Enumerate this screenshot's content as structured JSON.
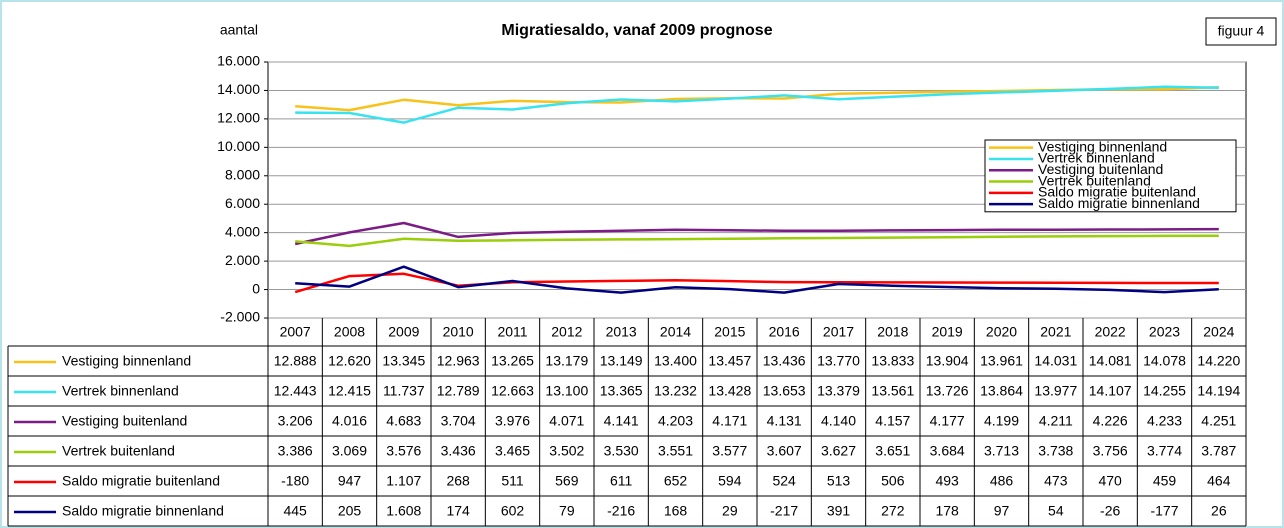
{
  "chart_data": {
    "type": "line",
    "title": "Migratiesaldo, vanaf 2009 prognose",
    "y_label": "aantal",
    "annotation": "figuur 4",
    "categories": [
      "2007",
      "2008",
      "2009",
      "2010",
      "2011",
      "2012",
      "2013",
      "2014",
      "2015",
      "2016",
      "2017",
      "2018",
      "2019",
      "2020",
      "2021",
      "2022",
      "2023",
      "2024"
    ],
    "ylim": [
      -2000,
      16000
    ],
    "yticks": [
      {
        "value": -2000,
        "label": "-2.000"
      },
      0,
      {
        "value": 2000,
        "label": "2.000"
      },
      {
        "value": 4000,
        "label": "4.000"
      },
      {
        "value": 6000,
        "label": "6.000"
      },
      {
        "value": 8000,
        "label": "8.000"
      },
      {
        "value": 10000,
        "label": "10.000"
      },
      {
        "value": 12000,
        "label": "12.000"
      },
      {
        "value": 14000,
        "label": "14.000"
      },
      {
        "value": 16000,
        "label": "16.000"
      }
    ],
    "grid": true,
    "legend": "upper right",
    "data_table": true,
    "series": [
      {
        "name": "Vestiging binnenland",
        "color": "#f7c21a",
        "values": [
          12888,
          12620,
          13345,
          12963,
          13265,
          13179,
          13149,
          13400,
          13457,
          13436,
          13770,
          13833,
          13904,
          13961,
          14031,
          14081,
          14078,
          14220
        ],
        "value_labels": [
          "12.888",
          "12.620",
          "13.345",
          "12.963",
          "13.265",
          "13.179",
          "13.149",
          "13.400",
          "13.457",
          "13.436",
          "13.770",
          "13.833",
          "13.904",
          "13.961",
          "14.031",
          "14.081",
          "14.078",
          "14.220"
        ]
      },
      {
        "name": "Vertrek binnenland",
        "color": "#38e3ef",
        "values": [
          12443,
          12415,
          11737,
          12789,
          12663,
          13100,
          13365,
          13232,
          13428,
          13653,
          13379,
          13561,
          13726,
          13864,
          13977,
          14107,
          14255,
          14194
        ],
        "value_labels": [
          "12.443",
          "12.415",
          "11.737",
          "12.789",
          "12.663",
          "13.100",
          "13.365",
          "13.232",
          "13.428",
          "13.653",
          "13.379",
          "13.561",
          "13.726",
          "13.864",
          "13.977",
          "14.107",
          "14.255",
          "14.194"
        ]
      },
      {
        "name": "Vestiging buitenland",
        "color": "#7b1c86",
        "values": [
          3206,
          4016,
          4683,
          3704,
          3976,
          4071,
          4141,
          4203,
          4171,
          4131,
          4140,
          4157,
          4177,
          4199,
          4211,
          4226,
          4233,
          4251
        ],
        "value_labels": [
          "3.206",
          "4.016",
          "4.683",
          "3.704",
          "3.976",
          "4.071",
          "4.141",
          "4.203",
          "4.171",
          "4.131",
          "4.140",
          "4.157",
          "4.177",
          "4.199",
          "4.211",
          "4.226",
          "4.233",
          "4.251"
        ]
      },
      {
        "name": "Vertrek buitenland",
        "color": "#9acd0a",
        "values": [
          3386,
          3069,
          3576,
          3436,
          3465,
          3502,
          3530,
          3551,
          3577,
          3607,
          3627,
          3651,
          3684,
          3713,
          3738,
          3756,
          3774,
          3787
        ],
        "value_labels": [
          "3.386",
          "3.069",
          "3.576",
          "3.436",
          "3.465",
          "3.502",
          "3.530",
          "3.551",
          "3.577",
          "3.607",
          "3.627",
          "3.651",
          "3.684",
          "3.713",
          "3.738",
          "3.756",
          "3.774",
          "3.787"
        ]
      },
      {
        "name": "Saldo migratie buitenland",
        "color": "#ff0000",
        "values": [
          -180,
          947,
          1107,
          268,
          511,
          569,
          611,
          652,
          594,
          524,
          513,
          506,
          493,
          486,
          473,
          470,
          459,
          464
        ],
        "value_labels": [
          "-180",
          "947",
          "1.107",
          "268",
          "511",
          "569",
          "611",
          "652",
          "594",
          "524",
          "513",
          "506",
          "493",
          "486",
          "473",
          "470",
          "459",
          "464"
        ]
      },
      {
        "name": "Saldo migratie binnenland",
        "color": "#000080",
        "values": [
          445,
          205,
          1608,
          174,
          602,
          79,
          -216,
          168,
          29,
          -217,
          391,
          272,
          178,
          97,
          54,
          -26,
          -177,
          26
        ],
        "value_labels": [
          "445",
          "205",
          "1.608",
          "174",
          "602",
          "79",
          "-216",
          "168",
          "29",
          "-217",
          "391",
          "272",
          "178",
          "97",
          "54",
          "-26",
          "-177",
          "26"
        ]
      }
    ]
  }
}
